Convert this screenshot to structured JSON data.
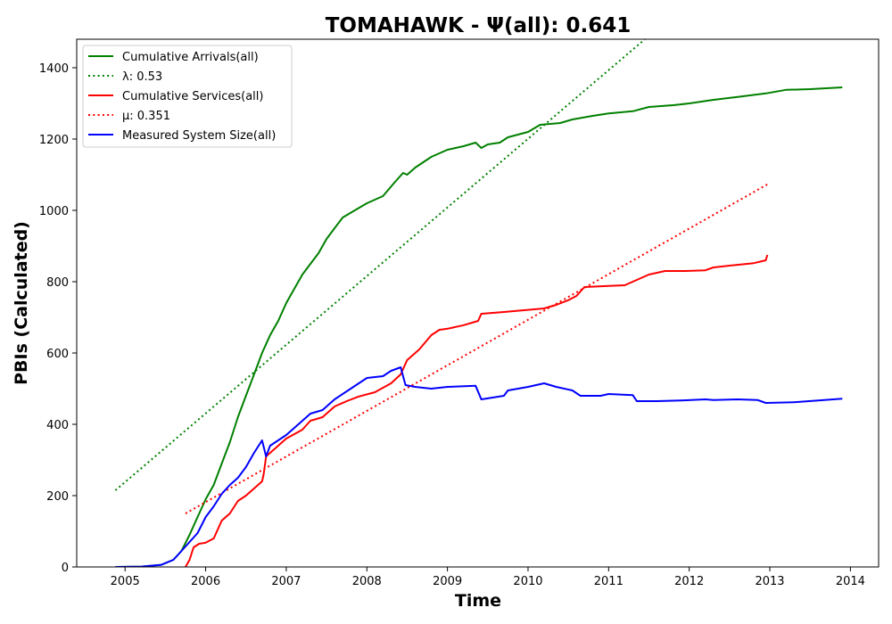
{
  "chart_data": {
    "type": "line",
    "title": "TOMAHAWK -  Ψ(all): 0.641",
    "xlabel": "Time",
    "ylabel": "PBIs (Calculated)",
    "xlim": [
      2004.4,
      2014.35
    ],
    "ylim": [
      0,
      1480
    ],
    "x_ticks": [
      2005,
      2006,
      2007,
      2008,
      2009,
      2010,
      2011,
      2012,
      2013,
      2014
    ],
    "x_tick_labels": [
      "2005",
      "2006",
      "2007",
      "2008",
      "2009",
      "2010",
      "2011",
      "2012",
      "2013",
      "2014"
    ],
    "y_ticks": [
      0,
      200,
      400,
      600,
      800,
      1000,
      1200,
      1400
    ],
    "y_tick_labels": [
      "0",
      "200",
      "400",
      "600",
      "800",
      "1000",
      "1200",
      "1400"
    ],
    "grid": false,
    "legend_position": "top-left",
    "series": [
      {
        "name": "Cumulative Arrivals(all)",
        "color": "#008000",
        "style": "solid",
        "points": [
          [
            2004.88,
            0
          ],
          [
            2005.2,
            1
          ],
          [
            2005.45,
            6
          ],
          [
            2005.6,
            20
          ],
          [
            2005.7,
            45
          ],
          [
            2005.8,
            90
          ],
          [
            2005.9,
            140
          ],
          [
            2006.0,
            190
          ],
          [
            2006.1,
            230
          ],
          [
            2006.2,
            290
          ],
          [
            2006.3,
            350
          ],
          [
            2006.4,
            420
          ],
          [
            2006.5,
            480
          ],
          [
            2006.6,
            540
          ],
          [
            2006.7,
            600
          ],
          [
            2006.8,
            650
          ],
          [
            2006.9,
            690
          ],
          [
            2007.0,
            740
          ],
          [
            2007.1,
            780
          ],
          [
            2007.2,
            820
          ],
          [
            2007.3,
            850
          ],
          [
            2007.4,
            880
          ],
          [
            2007.5,
            920
          ],
          [
            2007.6,
            950
          ],
          [
            2007.7,
            980
          ],
          [
            2007.85,
            1000
          ],
          [
            2008.0,
            1020
          ],
          [
            2008.2,
            1040
          ],
          [
            2008.35,
            1080
          ],
          [
            2008.45,
            1105
          ],
          [
            2008.5,
            1100
          ],
          [
            2008.6,
            1120
          ],
          [
            2008.8,
            1150
          ],
          [
            2009.0,
            1170
          ],
          [
            2009.2,
            1180
          ],
          [
            2009.35,
            1190
          ],
          [
            2009.42,
            1175
          ],
          [
            2009.5,
            1185
          ],
          [
            2009.65,
            1190
          ],
          [
            2009.75,
            1205
          ],
          [
            2010.0,
            1220
          ],
          [
            2010.15,
            1240
          ],
          [
            2010.4,
            1245
          ],
          [
            2010.55,
            1255
          ],
          [
            2010.8,
            1265
          ],
          [
            2011.0,
            1272
          ],
          [
            2011.3,
            1278
          ],
          [
            2011.5,
            1290
          ],
          [
            2011.8,
            1295
          ],
          [
            2012.0,
            1300
          ],
          [
            2012.3,
            1310
          ],
          [
            2012.6,
            1318
          ],
          [
            2012.95,
            1328
          ],
          [
            2013.2,
            1338
          ],
          [
            2013.5,
            1340
          ],
          [
            2013.9,
            1345
          ]
        ]
      },
      {
        "name": "λ: 0.53",
        "color": "#008000",
        "style": "dotted",
        "points": [
          [
            2004.88,
            215
          ],
          [
            2011.45,
            1480
          ]
        ]
      },
      {
        "name": "Cumulative Services(all)",
        "color": "#ff0000",
        "style": "solid",
        "points": [
          [
            2005.75,
            0
          ],
          [
            2005.8,
            20
          ],
          [
            2005.85,
            55
          ],
          [
            2005.92,
            65
          ],
          [
            2006.0,
            68
          ],
          [
            2006.1,
            80
          ],
          [
            2006.2,
            130
          ],
          [
            2006.3,
            150
          ],
          [
            2006.4,
            185
          ],
          [
            2006.5,
            200
          ],
          [
            2006.6,
            220
          ],
          [
            2006.7,
            240
          ],
          [
            2006.72,
            260
          ],
          [
            2006.75,
            310
          ],
          [
            2006.9,
            340
          ],
          [
            2007.0,
            360
          ],
          [
            2007.2,
            385
          ],
          [
            2007.3,
            410
          ],
          [
            2007.45,
            420
          ],
          [
            2007.6,
            450
          ],
          [
            2007.75,
            465
          ],
          [
            2007.9,
            478
          ],
          [
            2008.1,
            490
          ],
          [
            2008.3,
            515
          ],
          [
            2008.42,
            540
          ],
          [
            2008.5,
            580
          ],
          [
            2008.65,
            610
          ],
          [
            2008.8,
            650
          ],
          [
            2008.9,
            665
          ],
          [
            2009.0,
            668
          ],
          [
            2009.2,
            678
          ],
          [
            2009.38,
            690
          ],
          [
            2009.42,
            710
          ],
          [
            2009.7,
            715
          ],
          [
            2009.95,
            720
          ],
          [
            2010.2,
            725
          ],
          [
            2010.35,
            735
          ],
          [
            2010.5,
            748
          ],
          [
            2010.6,
            760
          ],
          [
            2010.7,
            785
          ],
          [
            2011.0,
            788
          ],
          [
            2011.2,
            790
          ],
          [
            2011.35,
            805
          ],
          [
            2011.5,
            820
          ],
          [
            2011.7,
            830
          ],
          [
            2011.95,
            830
          ],
          [
            2012.2,
            832
          ],
          [
            2012.3,
            840
          ],
          [
            2012.5,
            845
          ],
          [
            2012.8,
            852
          ],
          [
            2012.95,
            860
          ],
          [
            2012.97,
            875
          ]
        ]
      },
      {
        "name": "μ: 0.351",
        "color": "#ff0000",
        "style": "dotted",
        "points": [
          [
            2005.75,
            150
          ],
          [
            2012.97,
            1073
          ]
        ]
      },
      {
        "name": "Measured System Size(all)",
        "color": "#0000ff",
        "style": "solid",
        "points": [
          [
            2004.88,
            0
          ],
          [
            2005.2,
            1
          ],
          [
            2005.45,
            6
          ],
          [
            2005.6,
            20
          ],
          [
            2005.7,
            45
          ],
          [
            2005.8,
            70
          ],
          [
            2005.9,
            95
          ],
          [
            2006.0,
            140
          ],
          [
            2006.1,
            170
          ],
          [
            2006.2,
            205
          ],
          [
            2006.3,
            230
          ],
          [
            2006.4,
            250
          ],
          [
            2006.5,
            280
          ],
          [
            2006.6,
            320
          ],
          [
            2006.7,
            355
          ],
          [
            2006.75,
            310
          ],
          [
            2006.8,
            340
          ],
          [
            2007.0,
            370
          ],
          [
            2007.2,
            410
          ],
          [
            2007.3,
            430
          ],
          [
            2007.45,
            440
          ],
          [
            2007.6,
            470
          ],
          [
            2007.8,
            500
          ],
          [
            2008.0,
            530
          ],
          [
            2008.2,
            535
          ],
          [
            2008.3,
            550
          ],
          [
            2008.42,
            560
          ],
          [
            2008.48,
            510
          ],
          [
            2008.6,
            505
          ],
          [
            2008.8,
            500
          ],
          [
            2009.0,
            505
          ],
          [
            2009.35,
            508
          ],
          [
            2009.42,
            470
          ],
          [
            2009.7,
            480
          ],
          [
            2009.75,
            495
          ],
          [
            2010.0,
            505
          ],
          [
            2010.2,
            515
          ],
          [
            2010.35,
            505
          ],
          [
            2010.55,
            495
          ],
          [
            2010.65,
            480
          ],
          [
            2010.9,
            480
          ],
          [
            2011.0,
            485
          ],
          [
            2011.3,
            482
          ],
          [
            2011.35,
            465
          ],
          [
            2011.6,
            465
          ],
          [
            2011.9,
            467
          ],
          [
            2012.2,
            470
          ],
          [
            2012.3,
            468
          ],
          [
            2012.6,
            470
          ],
          [
            2012.85,
            468
          ],
          [
            2012.95,
            460
          ],
          [
            2013.3,
            462
          ],
          [
            2013.6,
            467
          ],
          [
            2013.9,
            472
          ]
        ]
      }
    ]
  }
}
